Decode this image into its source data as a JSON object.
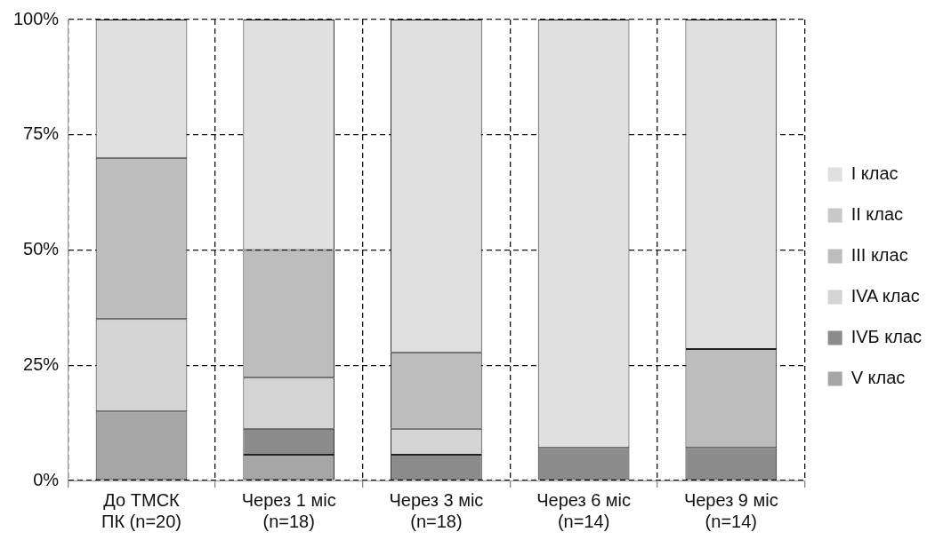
{
  "chart_data": {
    "type": "bar",
    "stacked": true,
    "categories": [
      "До ТМСК\nПК (n=20)",
      "Через 1 міс\n(n=18)",
      "Через 3 міс\n(n=18)",
      "Через 6 міс\n(n=14)",
      "Через 9 міс\n(n=14)"
    ],
    "series": [
      {
        "name": "V клас",
        "color": "#a6a6a6",
        "values": [
          15,
          5.6,
          0,
          0,
          0
        ]
      },
      {
        "name": "IVБ клас",
        "color": "#8c8c8c",
        "values": [
          0,
          5.6,
          5.6,
          7.1,
          7.1
        ]
      },
      {
        "name": "IVA клас",
        "color": "#d4d4d4",
        "values": [
          20,
          11.1,
          5.6,
          0,
          0
        ]
      },
      {
        "name": "III клас",
        "color": "#bdbdbd",
        "values": [
          35,
          27.7,
          16.6,
          0,
          21.4
        ]
      },
      {
        "name": "II клас",
        "color": "#c8c8c8",
        "values": [
          0,
          0,
          0,
          0,
          0
        ]
      },
      {
        "name": "I клас",
        "color": "#e0e0e0",
        "values": [
          30,
          50,
          72.2,
          92.9,
          71.5
        ]
      }
    ],
    "ylim": [
      0,
      100
    ],
    "yticks": [
      {
        "value": 0,
        "label": "0%"
      },
      {
        "value": 25,
        "label": "25%"
      },
      {
        "value": 50,
        "label": "50%"
      },
      {
        "value": 75,
        "label": "75%"
      },
      {
        "value": 100,
        "label": "100%"
      }
    ],
    "grid": true,
    "legend": "right"
  }
}
